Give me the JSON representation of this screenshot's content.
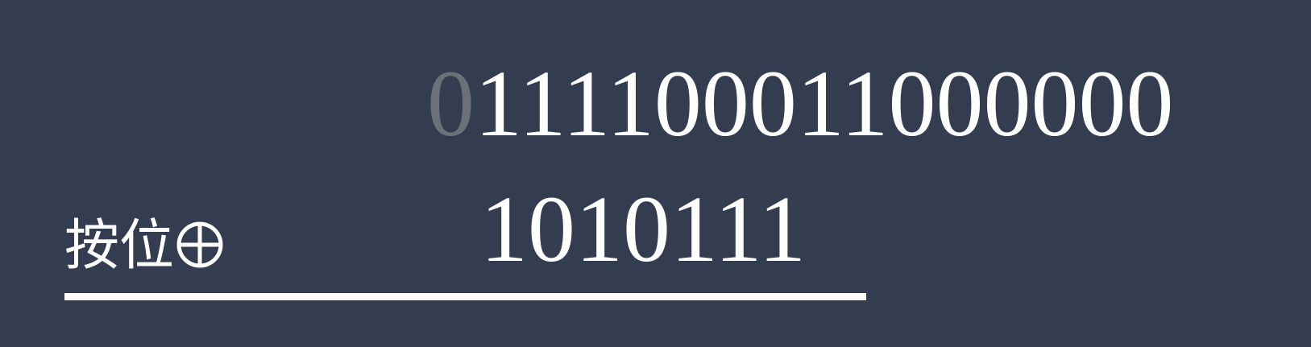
{
  "operand_a": {
    "dim_prefix": "0",
    "digits": "111100011000000"
  },
  "operand_b": {
    "digits": "1010111"
  },
  "operator": {
    "label": "按位",
    "icon": "circled-plus-icon"
  },
  "colors": {
    "background": "#343d50",
    "text": "#ffffff",
    "dim_digit": "#6c7078",
    "rule": "#ffffff"
  }
}
